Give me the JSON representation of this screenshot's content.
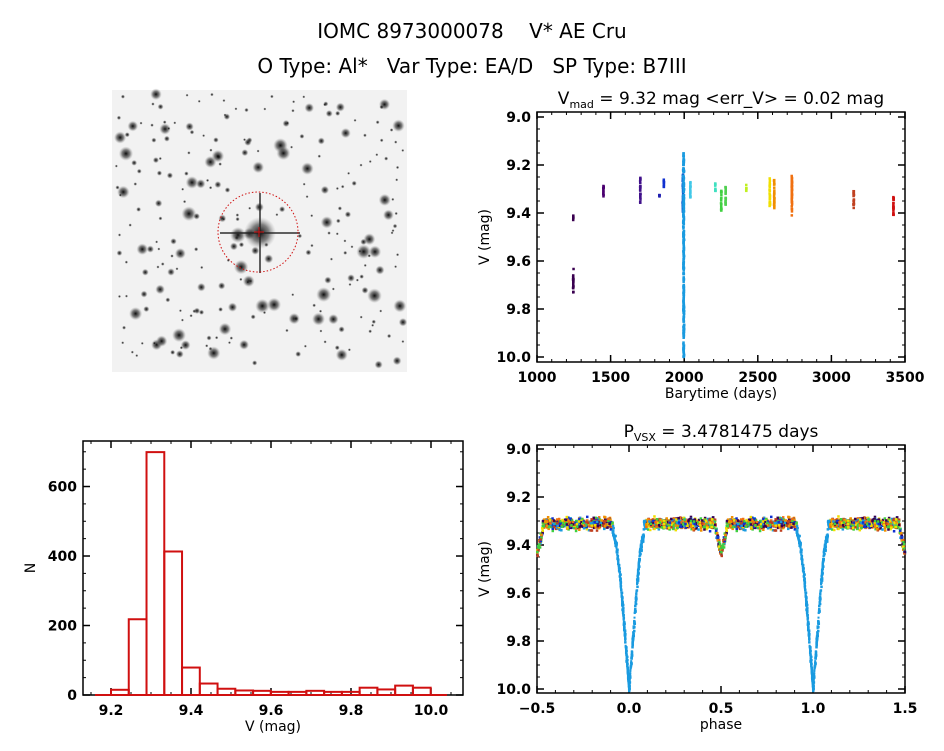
{
  "header": {
    "title": "IOMC 8973000078    V* AE Cru",
    "subtitle": "O Type: Al*   Var Type: EA/D   SP Type: B7III"
  },
  "colors": {
    "histogram": "#d01010",
    "frame": "#000000",
    "eclipse_season": "#1a9be0"
  },
  "finder_image": {
    "marker_color": "#d01010"
  },
  "chart_data": [
    {
      "type": "scatter",
      "title_main": "V",
      "title_sub": "mad",
      "title_rest": " = 9.32 mag <err_V> = 0.02 mag",
      "xlabel": "Barytime (days)",
      "ylabel": "V (mag)",
      "xlim": [
        1000,
        3500
      ],
      "ylim": [
        10.0,
        9.0
      ],
      "xticks": [
        "1000",
        "1500",
        "2000",
        "2500",
        "3000",
        "3500"
      ],
      "yticks": [
        "9.0",
        "9.2",
        "9.4",
        "9.6",
        "9.8",
        "10.0"
      ],
      "groups": [
        {
          "t": 1245,
          "v": [
            9.41,
            9.43
          ],
          "color": "#3a0050"
        },
        {
          "t": 1245,
          "v": [
            9.63,
            9.73
          ],
          "color": "#3a0050"
        },
        {
          "t": 1450,
          "v": [
            9.28,
            9.33
          ],
          "color": "#4b0070"
        },
        {
          "t": 1700,
          "v": [
            9.25,
            9.36
          ],
          "color": "#40108a"
        },
        {
          "t": 1830,
          "v": [
            9.32,
            9.34
          ],
          "color": "#2020b0"
        },
        {
          "t": 1860,
          "v": [
            9.26,
            9.3
          ],
          "color": "#1030d0"
        },
        {
          "t": 1990,
          "v": [
            9.22,
            9.4
          ],
          "color": "#1060d0"
        },
        {
          "t": 1995,
          "v": [
            9.15,
            10.0
          ],
          "color": "#1a9be0"
        },
        {
          "t": 2040,
          "v": [
            9.27,
            9.34
          ],
          "color": "#40c8e8"
        },
        {
          "t": 2210,
          "v": [
            9.27,
            9.31
          ],
          "color": "#40e0c0"
        },
        {
          "t": 2250,
          "v": [
            9.3,
            9.39
          ],
          "color": "#40d040"
        },
        {
          "t": 2280,
          "v": [
            9.29,
            9.37
          ],
          "color": "#50d050"
        },
        {
          "t": 2420,
          "v": [
            9.28,
            9.31
          ],
          "color": "#c0f020"
        },
        {
          "t": 2580,
          "v": [
            9.25,
            9.37
          ],
          "color": "#f0e000"
        },
        {
          "t": 2610,
          "v": [
            9.25,
            9.38
          ],
          "color": "#f09000"
        },
        {
          "t": 2730,
          "v": [
            9.24,
            9.41
          ],
          "color": "#f07010"
        },
        {
          "t": 3150,
          "v": [
            9.3,
            9.38
          ],
          "color": "#c04020"
        },
        {
          "t": 3420,
          "v": [
            9.33,
            9.41
          ],
          "color": "#d01010"
        }
      ]
    },
    {
      "type": "bar",
      "xlabel": "V (mag)",
      "ylabel": "N",
      "xlim": [
        9.13,
        10.08
      ],
      "ylim": [
        0,
        720
      ],
      "xticks": [
        "9.2",
        "9.4",
        "9.6",
        "9.8",
        "10.0"
      ],
      "yticks": [
        "0",
        "200",
        "400",
        "600"
      ],
      "bin_start": 9.2,
      "bin_width": 0.0444,
      "values": [
        15,
        218,
        699,
        413,
        79,
        33,
        18,
        13,
        12,
        9,
        9,
        12,
        9,
        9,
        21,
        16,
        27,
        21
      ]
    },
    {
      "type": "scatter",
      "title_main": "P",
      "title_sub": "VSX",
      "title_rest": " = 3.4781475 days",
      "xlabel": "phase",
      "ylabel": "V (mag)",
      "xlim": [
        -0.5,
        1.5
      ],
      "ylim": [
        10.0,
        9.0
      ],
      "xticks": [
        "−0.5",
        "0.0",
        "0.5",
        "1.0",
        "1.5"
      ],
      "yticks": [
        "9.0",
        "9.2",
        "9.4",
        "9.6",
        "9.8",
        "10.0"
      ],
      "baseline_mag": 9.31,
      "eclipse_profile": [
        [
          -0.09,
          9.34
        ],
        [
          -0.07,
          9.4
        ],
        [
          -0.05,
          9.52
        ],
        [
          -0.03,
          9.7
        ],
        [
          -0.015,
          9.85
        ],
        [
          0.0,
          10.0
        ],
        [
          0.015,
          9.85
        ],
        [
          0.03,
          9.7
        ],
        [
          0.045,
          9.55
        ],
        [
          0.06,
          9.42
        ],
        [
          0.08,
          9.35
        ]
      ],
      "secondary_eclipse": [
        [
          0.47,
          9.34
        ],
        [
          0.5,
          9.43
        ],
        [
          0.53,
          9.34
        ]
      ],
      "season_colors": [
        "#3a0050",
        "#1030d0",
        "#1a9be0",
        "#40d040",
        "#f0e000",
        "#f09000",
        "#f07010",
        "#c04020"
      ]
    }
  ]
}
